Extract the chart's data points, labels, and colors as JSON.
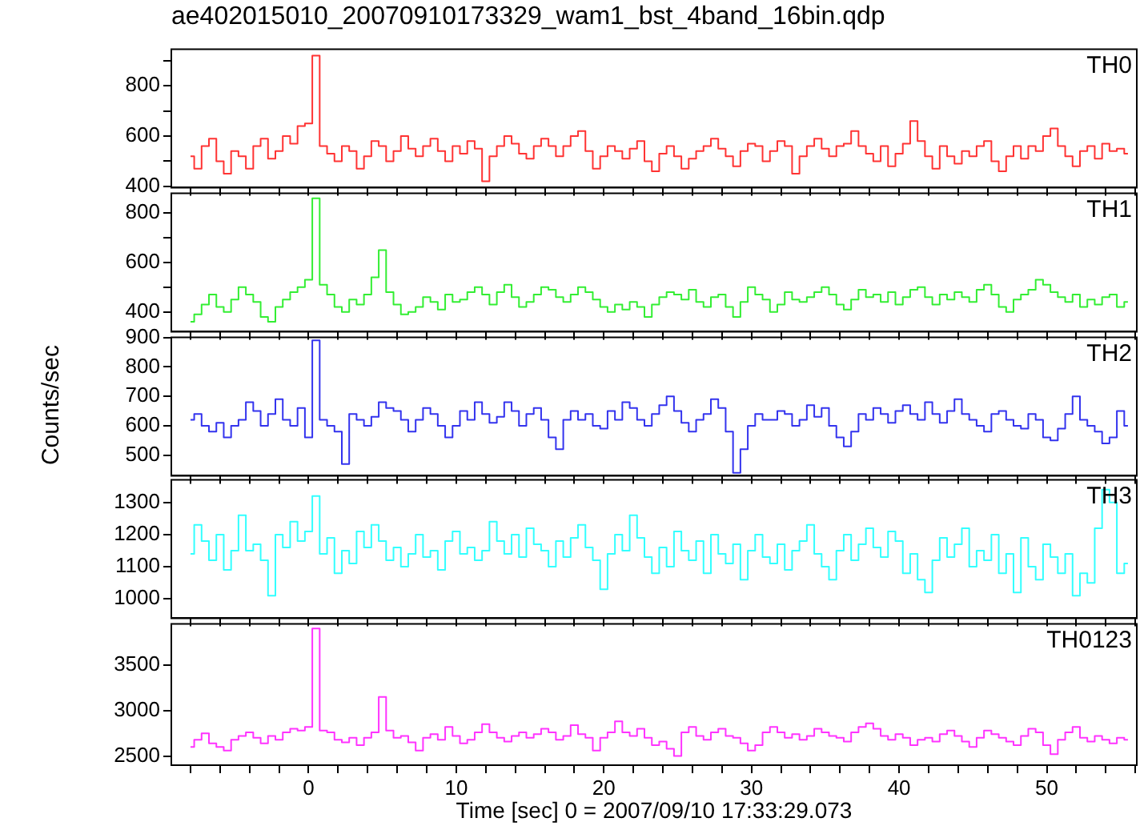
{
  "chart_data": [
    {
      "type": "step",
      "title": "ae402015010_20070910173329_wam1_bst_4band_16bin.qdp",
      "annotations": [
        "TH0"
      ],
      "tick_labels": "y",
      "xlim": [
        -9.3,
        56.1
      ],
      "ylim": [
        395,
        945
      ],
      "yticks": [
        400,
        {
          "value": 500,
          "label": null
        },
        600,
        {
          "value": 700,
          "label": null
        },
        800,
        {
          "value": 900,
          "label": null
        }
      ],
      "xticks": [
        {
          "value": -8,
          "label": null
        },
        {
          "value": -6,
          "label": null
        },
        {
          "value": -4,
          "label": null
        },
        {
          "value": -2,
          "label": null
        },
        0,
        {
          "value": 2,
          "label": null
        },
        {
          "value": 4,
          "label": null
        },
        {
          "value": 6,
          "label": null
        },
        {
          "value": 8,
          "label": null
        },
        10,
        {
          "value": 12,
          "label": null
        },
        {
          "value": 14,
          "label": null
        },
        {
          "value": 16,
          "label": null
        },
        {
          "value": 18,
          "label": null
        },
        20,
        {
          "value": 22,
          "label": null
        },
        {
          "value": 24,
          "label": null
        },
        {
          "value": 26,
          "label": null
        },
        {
          "value": 28,
          "label": null
        },
        30,
        {
          "value": 32,
          "label": null
        },
        {
          "value": 34,
          "label": null
        },
        {
          "value": 36,
          "label": null
        },
        {
          "value": 38,
          "label": null
        },
        40,
        {
          "value": 42,
          "label": null
        },
        {
          "value": 44,
          "label": null
        },
        {
          "value": 46,
          "label": null
        },
        {
          "value": 48,
          "label": null
        },
        50,
        {
          "value": 52,
          "label": null
        },
        {
          "value": 54,
          "label": null
        },
        {
          "value": 56,
          "label": null
        }
      ],
      "x": [
        -8,
        -7.5,
        -7,
        -6.5,
        -6,
        -5.5,
        -5,
        -4.5,
        -4,
        -3.5,
        -3,
        -2.5,
        -2,
        -1.5,
        -1,
        -0.5,
        0,
        0.5,
        1,
        1.5,
        2,
        2.5,
        3,
        3.5,
        4,
        4.5,
        5,
        5.5,
        6,
        6.5,
        7,
        7.5,
        8,
        8.5,
        9,
        9.5,
        10,
        10.5,
        11,
        11.5,
        12,
        12.5,
        13,
        13.5,
        14,
        14.5,
        15,
        15.5,
        16,
        16.5,
        17,
        17.5,
        18,
        18.5,
        19,
        19.5,
        20,
        20.5,
        21,
        21.5,
        22,
        22.5,
        23,
        23.5,
        24,
        24.5,
        25,
        25.5,
        26,
        26.5,
        27,
        27.5,
        28,
        28.5,
        29,
        29.5,
        30,
        30.5,
        31,
        31.5,
        32,
        32.5,
        33,
        33.5,
        34,
        34.5,
        35,
        35.5,
        36,
        36.5,
        37,
        37.5,
        38,
        38.5,
        39,
        39.5,
        40,
        40.5,
        41,
        41.5,
        42,
        42.5,
        43,
        43.5,
        44,
        44.5,
        45,
        45.5,
        46,
        46.5,
        47,
        47.5,
        48,
        48.5,
        49,
        49.5,
        50,
        50.5,
        51,
        51.5,
        52,
        52.5,
        53,
        53.5,
        54,
        54.5,
        55,
        55.5
      ],
      "series": [
        {
          "color": "#ff3333",
          "values": [
            520,
            470,
            560,
            590,
            500,
            450,
            540,
            520,
            470,
            560,
            590,
            510,
            540,
            600,
            570,
            640,
            650,
            920,
            560,
            530,
            500,
            560,
            540,
            470,
            520,
            580,
            560,
            500,
            540,
            600,
            550,
            520,
            560,
            590,
            540,
            500,
            560,
            530,
            580,
            550,
            420,
            520,
            560,
            600,
            570,
            530,
            510,
            560,
            590,
            560,
            520,
            560,
            600,
            620,
            540,
            470,
            520,
            560,
            540,
            510,
            550,
            580,
            500,
            460,
            530,
            560,
            520,
            470,
            510,
            540,
            560,
            590,
            550,
            520,
            480,
            540,
            570,
            560,
            500,
            540,
            580,
            560,
            450,
            520,
            560,
            590,
            550,
            520,
            560,
            570,
            620,
            560,
            530,
            500,
            560,
            480,
            530,
            570,
            660,
            580,
            520,
            470,
            560,
            520,
            490,
            540,
            520,
            560,
            580,
            500,
            460,
            520,
            560,
            510,
            560,
            540,
            600,
            630,
            560,
            520,
            480,
            540,
            560,
            510,
            570,
            540,
            550,
            530
          ]
        }
      ]
    },
    {
      "type": "step",
      "annotations": [
        "TH1"
      ],
      "tick_labels": "y",
      "xlim": [
        -9.3,
        56.1
      ],
      "ylim": [
        320,
        880
      ],
      "yticks": [
        400,
        {
          "value": 500,
          "label": null
        },
        600,
        {
          "value": 700,
          "label": null
        },
        800
      ],
      "xticks": [
        {
          "value": -8,
          "label": null
        },
        {
          "value": -6,
          "label": null
        },
        {
          "value": -4,
          "label": null
        },
        {
          "value": -2,
          "label": null
        },
        0,
        {
          "value": 2,
          "label": null
        },
        {
          "value": 4,
          "label": null
        },
        {
          "value": 6,
          "label": null
        },
        {
          "value": 8,
          "label": null
        },
        10,
        {
          "value": 12,
          "label": null
        },
        {
          "value": 14,
          "label": null
        },
        {
          "value": 16,
          "label": null
        },
        {
          "value": 18,
          "label": null
        },
        20,
        {
          "value": 22,
          "label": null
        },
        {
          "value": 24,
          "label": null
        },
        {
          "value": 26,
          "label": null
        },
        {
          "value": 28,
          "label": null
        },
        30,
        {
          "value": 32,
          "label": null
        },
        {
          "value": 34,
          "label": null
        },
        {
          "value": 36,
          "label": null
        },
        {
          "value": 38,
          "label": null
        },
        40,
        {
          "value": 42,
          "label": null
        },
        {
          "value": 44,
          "label": null
        },
        {
          "value": 46,
          "label": null
        },
        {
          "value": 48,
          "label": null
        },
        50,
        {
          "value": 52,
          "label": null
        },
        {
          "value": 54,
          "label": null
        },
        {
          "value": 56,
          "label": null
        }
      ],
      "x": [
        -8,
        -7.5,
        -7,
        -6.5,
        -6,
        -5.5,
        -5,
        -4.5,
        -4,
        -3.5,
        -3,
        -2.5,
        -2,
        -1.5,
        -1,
        -0.5,
        0,
        0.5,
        1,
        1.5,
        2,
        2.5,
        3,
        3.5,
        4,
        4.5,
        5,
        5.5,
        6,
        6.5,
        7,
        7.5,
        8,
        8.5,
        9,
        9.5,
        10,
        10.5,
        11,
        11.5,
        12,
        12.5,
        13,
        13.5,
        14,
        14.5,
        15,
        15.5,
        16,
        16.5,
        17,
        17.5,
        18,
        18.5,
        19,
        19.5,
        20,
        20.5,
        21,
        21.5,
        22,
        22.5,
        23,
        23.5,
        24,
        24.5,
        25,
        25.5,
        26,
        26.5,
        27,
        27.5,
        28,
        28.5,
        29,
        29.5,
        30,
        30.5,
        31,
        31.5,
        32,
        32.5,
        33,
        33.5,
        34,
        34.5,
        35,
        35.5,
        36,
        36.5,
        37,
        37.5,
        38,
        38.5,
        39,
        39.5,
        40,
        40.5,
        41,
        41.5,
        42,
        42.5,
        43,
        43.5,
        44,
        44.5,
        45,
        45.5,
        46,
        46.5,
        47,
        47.5,
        48,
        48.5,
        49,
        49.5,
        50,
        50.5,
        51,
        51.5,
        52,
        52.5,
        53,
        53.5,
        54,
        54.5,
        55,
        55.5
      ],
      "series": [
        {
          "color": "#33ee33",
          "values": [
            360,
            390,
            430,
            470,
            420,
            400,
            450,
            500,
            470,
            440,
            380,
            360,
            420,
            450,
            480,
            500,
            530,
            860,
            510,
            470,
            420,
            400,
            450,
            430,
            470,
            540,
            650,
            480,
            430,
            390,
            400,
            420,
            460,
            440,
            410,
            470,
            440,
            450,
            480,
            500,
            470,
            430,
            480,
            510,
            460,
            420,
            440,
            470,
            500,
            490,
            460,
            440,
            470,
            500,
            480,
            450,
            420,
            400,
            430,
            410,
            440,
            420,
            380,
            430,
            460,
            480,
            470,
            450,
            490,
            440,
            420,
            460,
            470,
            420,
            380,
            440,
            500,
            470,
            450,
            400,
            430,
            480,
            450,
            440,
            460,
            480,
            500,
            470,
            430,
            410,
            450,
            490,
            460,
            470,
            440,
            480,
            430,
            460,
            490,
            500,
            460,
            430,
            470,
            450,
            480,
            460,
            440,
            490,
            510,
            470,
            420,
            400,
            450,
            470,
            490,
            530,
            510,
            480,
            460,
            440,
            470,
            420,
            450,
            430,
            460,
            470,
            420,
            440
          ]
        }
      ]
    },
    {
      "type": "step",
      "annotations": [
        "TH2"
      ],
      "ylabel": "Counts/sec",
      "tick_labels": "y",
      "xlim": [
        -9.3,
        56.1
      ],
      "ylim": [
        430,
        900
      ],
      "yticks": [
        500,
        600,
        700,
        800,
        900
      ],
      "xticks": [
        {
          "value": -8,
          "label": null
        },
        {
          "value": -6,
          "label": null
        },
        {
          "value": -4,
          "label": null
        },
        {
          "value": -2,
          "label": null
        },
        0,
        {
          "value": 2,
          "label": null
        },
        {
          "value": 4,
          "label": null
        },
        {
          "value": 6,
          "label": null
        },
        {
          "value": 8,
          "label": null
        },
        10,
        {
          "value": 12,
          "label": null
        },
        {
          "value": 14,
          "label": null
        },
        {
          "value": 16,
          "label": null
        },
        {
          "value": 18,
          "label": null
        },
        20,
        {
          "value": 22,
          "label": null
        },
        {
          "value": 24,
          "label": null
        },
        {
          "value": 26,
          "label": null
        },
        {
          "value": 28,
          "label": null
        },
        30,
        {
          "value": 32,
          "label": null
        },
        {
          "value": 34,
          "label": null
        },
        {
          "value": 36,
          "label": null
        },
        {
          "value": 38,
          "label": null
        },
        40,
        {
          "value": 42,
          "label": null
        },
        {
          "value": 44,
          "label": null
        },
        {
          "value": 46,
          "label": null
        },
        {
          "value": 48,
          "label": null
        },
        50,
        {
          "value": 52,
          "label": null
        },
        {
          "value": 54,
          "label": null
        },
        {
          "value": 56,
          "label": null
        }
      ],
      "x": [
        -8,
        -7.5,
        -7,
        -6.5,
        -6,
        -5.5,
        -5,
        -4.5,
        -4,
        -3.5,
        -3,
        -2.5,
        -2,
        -1.5,
        -1,
        -0.5,
        0,
        0.5,
        1,
        1.5,
        2,
        2.5,
        3,
        3.5,
        4,
        4.5,
        5,
        5.5,
        6,
        6.5,
        7,
        7.5,
        8,
        8.5,
        9,
        9.5,
        10,
        10.5,
        11,
        11.5,
        12,
        12.5,
        13,
        13.5,
        14,
        14.5,
        15,
        15.5,
        16,
        16.5,
        17,
        17.5,
        18,
        18.5,
        19,
        19.5,
        20,
        20.5,
        21,
        21.5,
        22,
        22.5,
        23,
        23.5,
        24,
        24.5,
        25,
        25.5,
        26,
        26.5,
        27,
        27.5,
        28,
        28.5,
        29,
        29.5,
        30,
        30.5,
        31,
        31.5,
        32,
        32.5,
        33,
        33.5,
        34,
        34.5,
        35,
        35.5,
        36,
        36.5,
        37,
        37.5,
        38,
        38.5,
        39,
        39.5,
        40,
        40.5,
        41,
        41.5,
        42,
        42.5,
        43,
        43.5,
        44,
        44.5,
        45,
        45.5,
        46,
        46.5,
        47,
        47.5,
        48,
        48.5,
        49,
        49.5,
        50,
        50.5,
        51,
        51.5,
        52,
        52.5,
        53,
        53.5,
        54,
        54.5,
        55,
        55.5
      ],
      "series": [
        {
          "color": "#3333ee",
          "values": [
            620,
            640,
            600,
            580,
            610,
            560,
            600,
            620,
            680,
            650,
            600,
            640,
            690,
            620,
            600,
            660,
            560,
            890,
            620,
            600,
            580,
            470,
            640,
            620,
            600,
            630,
            680,
            660,
            650,
            620,
            580,
            620,
            660,
            640,
            600,
            560,
            600,
            650,
            620,
            680,
            640,
            610,
            630,
            680,
            650,
            600,
            640,
            660,
            620,
            560,
            520,
            620,
            650,
            620,
            640,
            600,
            590,
            650,
            620,
            680,
            660,
            620,
            600,
            640,
            670,
            700,
            650,
            610,
            580,
            620,
            640,
            690,
            660,
            580,
            440,
            520,
            600,
            640,
            620,
            620,
            650,
            640,
            600,
            620,
            670,
            630,
            660,
            600,
            560,
            530,
            580,
            640,
            620,
            660,
            640,
            610,
            650,
            670,
            640,
            620,
            680,
            640,
            610,
            650,
            690,
            640,
            620,
            600,
            580,
            640,
            650,
            620,
            600,
            590,
            640,
            620,
            560,
            550,
            590,
            640,
            700,
            620,
            600,
            580,
            540,
            560,
            650,
            600
          ]
        }
      ]
    },
    {
      "type": "step",
      "annotations": [
        "TH3"
      ],
      "tick_labels": "y",
      "xlim": [
        -9.3,
        56.1
      ],
      "ylim": [
        940,
        1370
      ],
      "yticks": [
        1000,
        1100,
        1200,
        1300
      ],
      "xticks": [
        {
          "value": -8,
          "label": null
        },
        {
          "value": -6,
          "label": null
        },
        {
          "value": -4,
          "label": null
        },
        {
          "value": -2,
          "label": null
        },
        0,
        {
          "value": 2,
          "label": null
        },
        {
          "value": 4,
          "label": null
        },
        {
          "value": 6,
          "label": null
        },
        {
          "value": 8,
          "label": null
        },
        10,
        {
          "value": 12,
          "label": null
        },
        {
          "value": 14,
          "label": null
        },
        {
          "value": 16,
          "label": null
        },
        {
          "value": 18,
          "label": null
        },
        20,
        {
          "value": 22,
          "label": null
        },
        {
          "value": 24,
          "label": null
        },
        {
          "value": 26,
          "label": null
        },
        {
          "value": 28,
          "label": null
        },
        30,
        {
          "value": 32,
          "label": null
        },
        {
          "value": 34,
          "label": null
        },
        {
          "value": 36,
          "label": null
        },
        {
          "value": 38,
          "label": null
        },
        40,
        {
          "value": 42,
          "label": null
        },
        {
          "value": 44,
          "label": null
        },
        {
          "value": 46,
          "label": null
        },
        {
          "value": 48,
          "label": null
        },
        50,
        {
          "value": 52,
          "label": null
        },
        {
          "value": 54,
          "label": null
        },
        {
          "value": 56,
          "label": null
        }
      ],
      "x": [
        -8,
        -7.5,
        -7,
        -6.5,
        -6,
        -5.5,
        -5,
        -4.5,
        -4,
        -3.5,
        -3,
        -2.5,
        -2,
        -1.5,
        -1,
        -0.5,
        0,
        0.5,
        1,
        1.5,
        2,
        2.5,
        3,
        3.5,
        4,
        4.5,
        5,
        5.5,
        6,
        6.5,
        7,
        7.5,
        8,
        8.5,
        9,
        9.5,
        10,
        10.5,
        11,
        11.5,
        12,
        12.5,
        13,
        13.5,
        14,
        14.5,
        15,
        15.5,
        16,
        16.5,
        17,
        17.5,
        18,
        18.5,
        19,
        19.5,
        20,
        20.5,
        21,
        21.5,
        22,
        22.5,
        23,
        23.5,
        24,
        24.5,
        25,
        25.5,
        26,
        26.5,
        27,
        27.5,
        28,
        28.5,
        29,
        29.5,
        30,
        30.5,
        31,
        31.5,
        32,
        32.5,
        33,
        33.5,
        34,
        34.5,
        35,
        35.5,
        36,
        36.5,
        37,
        37.5,
        38,
        38.5,
        39,
        39.5,
        40,
        40.5,
        41,
        41.5,
        42,
        42.5,
        43,
        43.5,
        44,
        44.5,
        45,
        45.5,
        46,
        46.5,
        47,
        47.5,
        48,
        48.5,
        49,
        49.5,
        50,
        50.5,
        51,
        51.5,
        52,
        52.5,
        53,
        53.5,
        54,
        54.5,
        55,
        55.5
      ],
      "series": [
        {
          "color": "#33ffff",
          "values": [
            1140,
            1230,
            1180,
            1120,
            1200,
            1090,
            1150,
            1260,
            1150,
            1170,
            1120,
            1010,
            1200,
            1160,
            1240,
            1180,
            1210,
            1320,
            1140,
            1190,
            1080,
            1150,
            1110,
            1210,
            1160,
            1230,
            1180,
            1120,
            1160,
            1100,
            1140,
            1200,
            1130,
            1150,
            1090,
            1180,
            1210,
            1140,
            1160,
            1120,
            1150,
            1240,
            1180,
            1140,
            1200,
            1130,
            1220,
            1170,
            1150,
            1100,
            1180,
            1130,
            1190,
            1230,
            1160,
            1120,
            1030,
            1140,
            1200,
            1150,
            1260,
            1190,
            1130,
            1080,
            1160,
            1100,
            1210,
            1150,
            1120,
            1180,
            1080,
            1200,
            1140,
            1110,
            1170,
            1060,
            1150,
            1200,
            1130,
            1110,
            1170,
            1090,
            1150,
            1180,
            1230,
            1140,
            1100,
            1060,
            1150,
            1200,
            1120,
            1170,
            1220,
            1160,
            1130,
            1210,
            1180,
            1080,
            1140,
            1060,
            1020,
            1120,
            1190,
            1130,
            1170,
            1220,
            1100,
            1150,
            1120,
            1200,
            1080,
            1140,
            1020,
            1190,
            1100,
            1060,
            1170,
            1130,
            1080,
            1140,
            1010,
            1080,
            1050,
            1220,
            1340,
            1300,
            1080,
            1110
          ]
        }
      ]
    },
    {
      "type": "step",
      "annotations": [
        "TH0123"
      ],
      "xlabel": "Time [sec] 0 = 2007/09/10 17:33:29.073",
      "xlim": [
        -9.3,
        56.1
      ],
      "ylim": [
        2400,
        3950
      ],
      "yticks": [
        2500,
        3000,
        3500
      ],
      "xticks": [
        {
          "value": -8,
          "label": null
        },
        {
          "value": -6,
          "label": null
        },
        {
          "value": -4,
          "label": null
        },
        {
          "value": -2,
          "label": null
        },
        0,
        {
          "value": 2,
          "label": null
        },
        {
          "value": 4,
          "label": null
        },
        {
          "value": 6,
          "label": null
        },
        {
          "value": 8,
          "label": null
        },
        10,
        {
          "value": 12,
          "label": null
        },
        {
          "value": 14,
          "label": null
        },
        {
          "value": 16,
          "label": null
        },
        {
          "value": 18,
          "label": null
        },
        20,
        {
          "value": 22,
          "label": null
        },
        {
          "value": 24,
          "label": null
        },
        {
          "value": 26,
          "label": null
        },
        {
          "value": 28,
          "label": null
        },
        30,
        {
          "value": 32,
          "label": null
        },
        {
          "value": 34,
          "label": null
        },
        {
          "value": 36,
          "label": null
        },
        {
          "value": 38,
          "label": null
        },
        40,
        {
          "value": 42,
          "label": null
        },
        {
          "value": 44,
          "label": null
        },
        {
          "value": 46,
          "label": null
        },
        {
          "value": 48,
          "label": null
        },
        50,
        {
          "value": 52,
          "label": null
        },
        {
          "value": 54,
          "label": null
        },
        {
          "value": 56,
          "label": null
        }
      ],
      "x": [
        -8,
        -7.5,
        -7,
        -6.5,
        -6,
        -5.5,
        -5,
        -4.5,
        -4,
        -3.5,
        -3,
        -2.5,
        -2,
        -1.5,
        -1,
        -0.5,
        0,
        0.5,
        1,
        1.5,
        2,
        2.5,
        3,
        3.5,
        4,
        4.5,
        5,
        5.5,
        6,
        6.5,
        7,
        7.5,
        8,
        8.5,
        9,
        9.5,
        10,
        10.5,
        11,
        11.5,
        12,
        12.5,
        13,
        13.5,
        14,
        14.5,
        15,
        15.5,
        16,
        16.5,
        17,
        17.5,
        18,
        18.5,
        19,
        19.5,
        20,
        20.5,
        21,
        21.5,
        22,
        22.5,
        23,
        23.5,
        24,
        24.5,
        25,
        25.5,
        26,
        26.5,
        27,
        27.5,
        28,
        28.5,
        29,
        29.5,
        30,
        30.5,
        31,
        31.5,
        32,
        32.5,
        33,
        33.5,
        34,
        34.5,
        35,
        35.5,
        36,
        36.5,
        37,
        37.5,
        38,
        38.5,
        39,
        39.5,
        40,
        40.5,
        41,
        41.5,
        42,
        42.5,
        43,
        43.5,
        44,
        44.5,
        45,
        45.5,
        46,
        46.5,
        47,
        47.5,
        48,
        48.5,
        49,
        49.5,
        50,
        50.5,
        51,
        51.5,
        52,
        52.5,
        53,
        53.5,
        54,
        54.5,
        55,
        55.5
      ],
      "series": [
        {
          "color": "#ff33ff",
          "values": [
            2600,
            2680,
            2750,
            2640,
            2600,
            2560,
            2680,
            2720,
            2760,
            2700,
            2640,
            2720,
            2680,
            2760,
            2800,
            2780,
            2820,
            3900,
            2780,
            2760,
            2680,
            2650,
            2700,
            2620,
            2700,
            2760,
            3150,
            2780,
            2700,
            2720,
            2650,
            2560,
            2700,
            2740,
            2680,
            2820,
            2720,
            2640,
            2680,
            2760,
            2850,
            2760,
            2700,
            2660,
            2720,
            2760,
            2700,
            2740,
            2800,
            2760,
            2680,
            2720,
            2840,
            2740,
            2700,
            2560,
            2700,
            2760,
            2880,
            2760,
            2720,
            2800,
            2700,
            2620,
            2660,
            2580,
            2500,
            2760,
            2820,
            2720,
            2680,
            2760,
            2800,
            2720,
            2700,
            2640,
            2560,
            2620,
            2760,
            2820,
            2760,
            2700,
            2740,
            2680,
            2720,
            2800,
            2760,
            2720,
            2700,
            2660,
            2760,
            2820,
            2860,
            2800,
            2720,
            2680,
            2740,
            2700,
            2620,
            2680,
            2700,
            2660,
            2740,
            2780,
            2720,
            2660,
            2600,
            2700,
            2780,
            2740,
            2700,
            2660,
            2620,
            2720,
            2800,
            2760,
            2620,
            2520,
            2680,
            2760,
            2820,
            2700,
            2660,
            2720,
            2680,
            2640,
            2700,
            2680
          ]
        }
      ]
    }
  ]
}
